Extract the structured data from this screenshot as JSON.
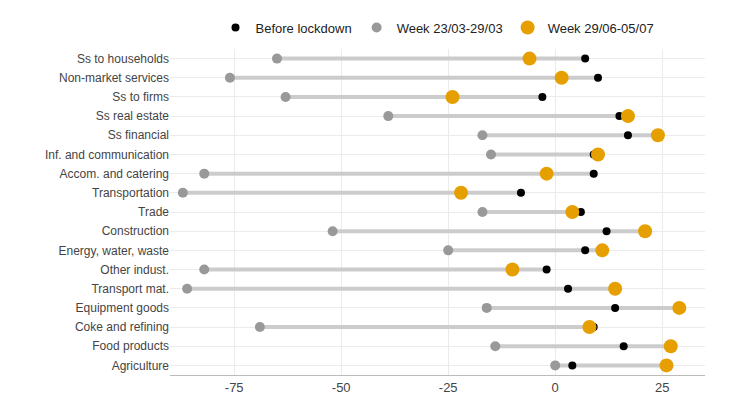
{
  "chart_data": {
    "type": "dumbbell",
    "orientation": "horizontal",
    "categories": [
      "Ss to households",
      "Non-market services",
      "Ss to firms",
      "Ss real estate",
      "Ss financial",
      "Inf. and communication",
      "Accom. and catering",
      "Transportation",
      "Trade",
      "Construction",
      "Energy, water, waste",
      "Other indust.",
      "Transport mat.",
      "Equipment goods",
      "Coke and refining",
      "Food products",
      "Agriculture"
    ],
    "series": [
      {
        "name": "Before lockdown",
        "color": "#000000",
        "values": [
          7,
          10,
          -3,
          15,
          17,
          9,
          9,
          -8,
          6,
          12,
          7,
          -2,
          3,
          14,
          9,
          16,
          4
        ]
      },
      {
        "name": "Week 23/03-29/03",
        "color": "#999999",
        "values": [
          -65,
          -76,
          -63,
          -39,
          -17,
          -15,
          -82,
          -87,
          -17,
          -52,
          -25,
          -82,
          -86,
          -16,
          -69,
          -14,
          0
        ]
      },
      {
        "name": "Week 29/06-05/07",
        "color": "#E69F00",
        "values": [
          -6,
          1.5,
          -24,
          17,
          24,
          10,
          -2,
          -22,
          4,
          21,
          11,
          -10,
          14,
          29,
          8,
          27,
          26
        ]
      }
    ],
    "xlim": [
      -90,
      35
    ],
    "xticks": [
      -75,
      -50,
      -25,
      0,
      25
    ],
    "grid": true,
    "legend": "top"
  }
}
